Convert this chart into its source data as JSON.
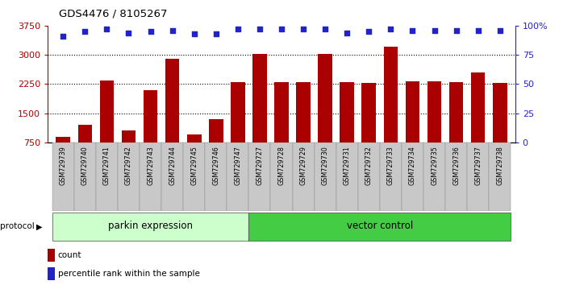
{
  "title": "GDS4476 / 8105267",
  "samples": [
    "GSM729739",
    "GSM729740",
    "GSM729741",
    "GSM729742",
    "GSM729743",
    "GSM729744",
    "GSM729745",
    "GSM729746",
    "GSM729747",
    "GSM729727",
    "GSM729728",
    "GSM729729",
    "GSM729730",
    "GSM729731",
    "GSM729732",
    "GSM729733",
    "GSM729734",
    "GSM729735",
    "GSM729736",
    "GSM729737",
    "GSM729738"
  ],
  "counts": [
    900,
    1200,
    2350,
    1050,
    2100,
    2900,
    950,
    1350,
    2300,
    3020,
    2300,
    2300,
    3020,
    2300,
    2280,
    3200,
    2320,
    2330,
    2300,
    2550,
    2280
  ],
  "percentile_ranks": [
    91,
    95,
    97,
    94,
    95,
    96,
    93,
    93,
    97,
    97,
    97,
    97,
    97,
    94,
    95,
    97,
    96,
    96,
    96,
    96,
    96
  ],
  "bar_color": "#aa0000",
  "dot_color": "#2222cc",
  "left_yticks": [
    750,
    1500,
    2250,
    3000,
    3750
  ],
  "right_ytick_labels": [
    "0",
    "25",
    "50",
    "75",
    "100%"
  ],
  "right_ytick_vals": [
    0,
    25,
    50,
    75,
    100
  ],
  "ylim_left": [
    750,
    3750
  ],
  "legend_count_label": "count",
  "legend_pct_label": "percentile rank within the sample",
  "parkin_label": "parkin expression",
  "vector_label": "vector control",
  "protocol_label": "protocol",
  "parkin_color": "#ccffcc",
  "vector_color": "#44cc44",
  "sample_bg_color": "#c8c8c8",
  "n_parkin": 9,
  "n_vector": 12,
  "grid_lines": [
    1500,
    2250,
    3000
  ]
}
